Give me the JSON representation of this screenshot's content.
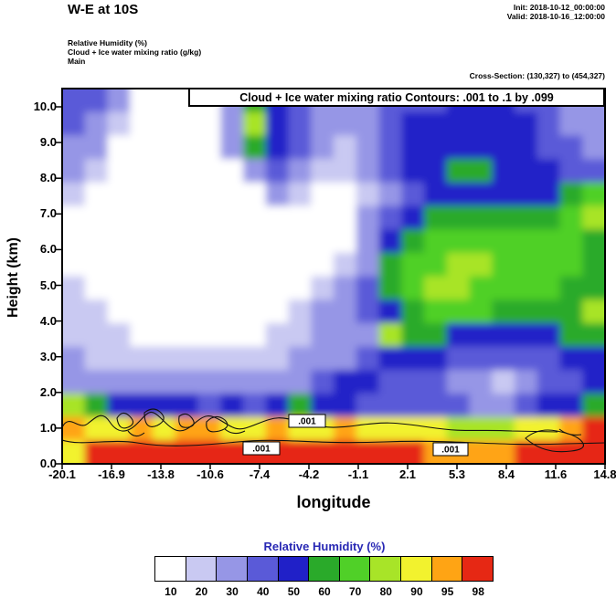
{
  "header": {
    "title": "W-E at 10S",
    "init_label": "Init: 2018-10-12_00:00:00",
    "valid_label": "Valid: 2018-10-16_12:00:00",
    "fields": [
      "Relative Humidity  (%)",
      "Cloud + Ice water mixing ratio   (g/kg)",
      "Main"
    ],
    "cross_section": "Cross-Section: (130,327) to (454,327)"
  },
  "plot": {
    "contour_title": "Cloud + Ice water mixing ratio Contours: .001 to .1 by .099",
    "contour_label": ".001",
    "xlabel": "longitude",
    "ylabel": "Height (km)",
    "x_ticks": [
      "-20.1",
      "-16.9",
      "-13.8",
      "-10.6",
      "-7.4",
      "-4.2",
      "-1.1",
      "2.1",
      "5.3",
      "8.4",
      "11.6",
      "14.8"
    ],
    "y_ticks": [
      "0.0",
      "1.0",
      "2.0",
      "3.0",
      "4.0",
      "5.0",
      "6.0",
      "7.0",
      "8.0",
      "9.0",
      "10.0"
    ]
  },
  "colorbar": {
    "title": "Relative Humidity  (%)",
    "title_color": "#2828b4",
    "labels": [
      "10",
      "20",
      "30",
      "40",
      "50",
      "60",
      "70",
      "80",
      "90",
      "95",
      "98"
    ],
    "colors": [
      "#ffffff",
      "#c9c9f2",
      "#9696e6",
      "#5a5ad8",
      "#2020c8",
      "#2aaa2a",
      "#50d028",
      "#a8e428",
      "#f2f22e",
      "#ffa414",
      "#e62814"
    ]
  },
  "chart_data": {
    "type": "heatmap",
    "title": "W-E at 10S",
    "subtitle": "Cloud + Ice water mixing ratio Contours: .001 to .1 by .099",
    "xlabel": "longitude",
    "ylabel": "Height (km)",
    "x_range": [
      -20.1,
      14.8
    ],
    "y_range": [
      0,
      10.5
    ],
    "x_ticks": [
      -20.1,
      -16.9,
      -13.8,
      -10.6,
      -7.4,
      -4.2,
      -1.1,
      2.1,
      5.3,
      8.4,
      11.6,
      14.8
    ],
    "y_ticks": [
      0,
      1,
      2,
      3,
      4,
      5,
      6,
      7,
      8,
      9,
      10
    ],
    "grid_lines": false,
    "legend_position": "bottom",
    "colorbar_levels": [
      10,
      20,
      30,
      40,
      50,
      60,
      70,
      80,
      90,
      95,
      98
    ],
    "colorbar_colors": [
      "#ffffff",
      "#c9c9f2",
      "#9696e6",
      "#5a5ad8",
      "#2020c8",
      "#2aaa2a",
      "#50d028",
      "#a8e428",
      "#f2f22e",
      "#ffa414",
      "#e62814"
    ],
    "contour_overlay": {
      "variable": "Cloud + Ice water mixing ratio (g/kg)",
      "levels": ".001 to .1 by .099",
      "label": ".001",
      "label_points": [
        {
          "lon": -7.4,
          "km": 0.45
        },
        {
          "lon": -4.4,
          "km": 1.2
        },
        {
          "lon": 4.8,
          "km": 0.4
        }
      ]
    },
    "grid": {
      "ncols": 24,
      "nrows": 16,
      "order": "rows top (10.5 km) to bottom (0 km), columns west (-20.1) to east (14.8)",
      "rh_percent": [
        [
          40,
          40,
          30,
          5,
          5,
          5,
          15,
          30,
          60,
          50,
          40,
          30,
          30,
          30,
          40,
          40,
          40,
          50,
          50,
          50,
          40,
          40,
          30,
          30
        ],
        [
          40,
          30,
          20,
          5,
          5,
          5,
          15,
          30,
          80,
          50,
          40,
          30,
          30,
          30,
          40,
          50,
          50,
          50,
          50,
          50,
          50,
          40,
          30,
          30
        ],
        [
          30,
          30,
          15,
          5,
          5,
          5,
          15,
          30,
          60,
          50,
          40,
          30,
          20,
          30,
          40,
          50,
          50,
          50,
          50,
          50,
          50,
          40,
          40,
          30
        ],
        [
          30,
          20,
          15,
          5,
          5,
          5,
          5,
          15,
          30,
          40,
          30,
          20,
          20,
          30,
          40,
          50,
          50,
          60,
          60,
          50,
          50,
          50,
          40,
          40
        ],
        [
          20,
          15,
          5,
          5,
          5,
          5,
          5,
          5,
          15,
          30,
          20,
          15,
          15,
          20,
          30,
          40,
          50,
          50,
          50,
          50,
          50,
          50,
          60,
          70
        ],
        [
          15,
          15,
          5,
          5,
          5,
          5,
          5,
          5,
          5,
          15,
          15,
          15,
          15,
          30,
          40,
          50,
          60,
          60,
          60,
          60,
          60,
          60,
          70,
          80
        ],
        [
          15,
          5,
          5,
          5,
          5,
          5,
          5,
          5,
          5,
          5,
          15,
          15,
          15,
          30,
          50,
          60,
          70,
          70,
          70,
          70,
          70,
          70,
          70,
          60
        ],
        [
          15,
          15,
          5,
          5,
          5,
          5,
          5,
          5,
          5,
          5,
          5,
          15,
          20,
          30,
          60,
          70,
          70,
          80,
          80,
          70,
          70,
          70,
          70,
          60
        ],
        [
          20,
          15,
          15,
          15,
          5,
          5,
          5,
          5,
          5,
          5,
          15,
          20,
          30,
          40,
          60,
          70,
          80,
          80,
          70,
          70,
          70,
          70,
          60,
          60
        ],
        [
          20,
          20,
          15,
          15,
          15,
          5,
          5,
          5,
          5,
          15,
          20,
          30,
          30,
          40,
          50,
          60,
          70,
          70,
          70,
          60,
          60,
          60,
          60,
          80
        ],
        [
          20,
          20,
          20,
          15,
          15,
          15,
          15,
          15,
          15,
          20,
          20,
          30,
          30,
          30,
          80,
          60,
          60,
          50,
          50,
          50,
          50,
          50,
          60,
          60
        ],
        [
          30,
          20,
          20,
          20,
          20,
          20,
          20,
          20,
          20,
          20,
          30,
          30,
          30,
          40,
          50,
          50,
          50,
          40,
          40,
          40,
          40,
          40,
          50,
          50
        ],
        [
          30,
          30,
          30,
          30,
          30,
          30,
          30,
          30,
          30,
          30,
          30,
          40,
          50,
          50,
          40,
          40,
          40,
          30,
          30,
          20,
          30,
          40,
          40,
          50
        ],
        [
          80,
          60,
          50,
          50,
          50,
          50,
          40,
          50,
          40,
          50,
          60,
          50,
          50,
          40,
          40,
          40,
          40,
          40,
          30,
          30,
          40,
          50,
          50,
          60
        ],
        [
          95,
          90,
          90,
          95,
          90,
          95,
          95,
          90,
          90,
          95,
          90,
          90,
          95,
          90,
          90,
          90,
          90,
          80,
          80,
          80,
          90,
          90,
          95,
          99
        ],
        [
          90,
          99,
          99,
          99,
          99,
          99,
          99,
          99,
          99,
          99,
          99,
          99,
          99,
          99,
          99,
          99,
          95,
          95,
          95,
          95,
          99,
          99,
          99,
          99
        ]
      ]
    }
  }
}
